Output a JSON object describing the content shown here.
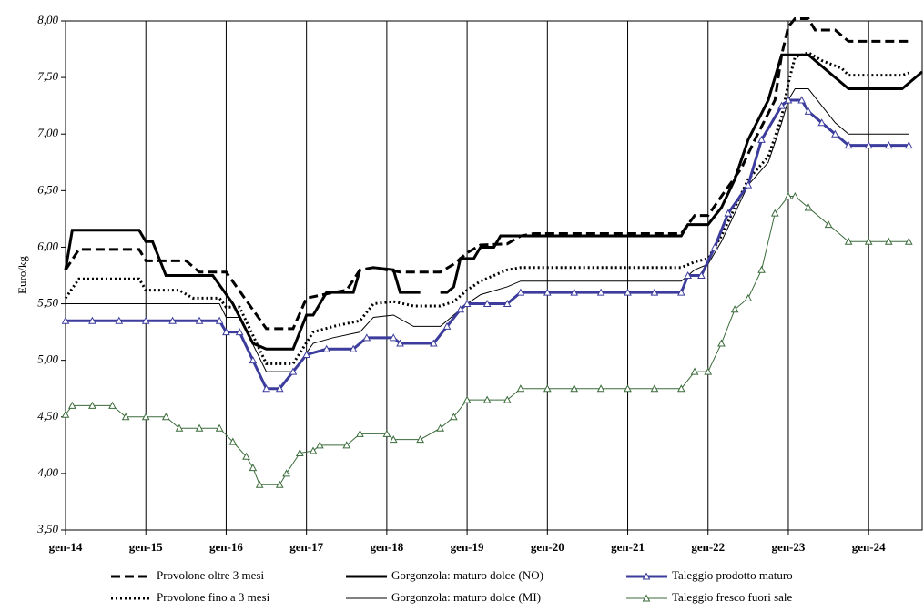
{
  "chart_data": {
    "type": "line",
    "y_label": "Euro/kg",
    "xlim": [
      0,
      128
    ],
    "xticks": [
      {
        "value": 0,
        "label": "gen-14"
      },
      {
        "value": 12,
        "label": "gen-15"
      },
      {
        "value": 24,
        "label": "gen-16"
      },
      {
        "value": 36,
        "label": "gen-17"
      },
      {
        "value": 48,
        "label": "gen-18"
      },
      {
        "value": 60,
        "label": "gen-19"
      },
      {
        "value": 72,
        "label": "gen-20"
      },
      {
        "value": 84,
        "label": "gen-21"
      },
      {
        "value": 96,
        "label": "gen-22"
      },
      {
        "value": 108,
        "label": "gen-23"
      },
      {
        "value": 120,
        "label": "gen-24"
      }
    ],
    "ylim": [
      3.5,
      8
    ],
    "yticks": [
      {
        "value": 3.5,
        "label": "3,50"
      },
      {
        "value": 4,
        "label": "4,00"
      },
      {
        "value": 4.5,
        "label": "4,50"
      },
      {
        "value": 5,
        "label": "5,00"
      },
      {
        "value": 5.5,
        "label": "5,50"
      },
      {
        "value": 6,
        "label": "6,00"
      },
      {
        "value": 6.5,
        "label": "6,50"
      },
      {
        "value": 7,
        "label": "7,00"
      },
      {
        "value": 7.5,
        "label": "7,50"
      },
      {
        "value": 8,
        "label": "8,00"
      }
    ],
    "grid": "vertical",
    "series": [
      {
        "name": "Provolone oltre 3 mesi",
        "color": "#000000",
        "line_style": "dashed",
        "line_width": 3,
        "marker": "none",
        "x": [
          0,
          2,
          11,
          12,
          18,
          20,
          24,
          30,
          34,
          36,
          40,
          42,
          44,
          46,
          50,
          56,
          58,
          60,
          62,
          66,
          68,
          70,
          92,
          94,
          96,
          98,
          101,
          103,
          106,
          107,
          108,
          109,
          111,
          112,
          115,
          117,
          126
        ],
        "values": [
          5.8,
          5.98,
          5.98,
          5.88,
          5.88,
          5.78,
          5.78,
          5.28,
          5.28,
          5.55,
          5.6,
          5.62,
          5.8,
          5.82,
          5.78,
          5.78,
          5.85,
          5.95,
          6.02,
          6.03,
          6.1,
          6.12,
          6.12,
          6.28,
          6.28,
          6.45,
          6.7,
          6.95,
          7.3,
          7.7,
          7.95,
          8.02,
          8.02,
          7.92,
          7.92,
          7.82,
          7.82
        ]
      },
      {
        "name": "Provolone fino a 3 mesi",
        "color": "#000000",
        "line_style": "dotted",
        "line_width": 3,
        "marker": "none",
        "x": [
          0,
          2,
          11,
          12,
          17,
          19,
          23,
          24,
          26,
          30,
          34,
          37,
          40,
          44,
          46,
          49,
          52,
          56,
          58,
          60,
          62,
          64,
          66,
          68,
          92,
          94,
          96,
          98,
          100,
          102,
          105,
          107,
          108,
          109,
          111,
          113,
          116,
          117,
          125,
          126
        ],
        "values": [
          5.55,
          5.72,
          5.72,
          5.62,
          5.62,
          5.55,
          5.55,
          5.47,
          5.47,
          4.97,
          4.97,
          5.25,
          5.3,
          5.35,
          5.5,
          5.52,
          5.48,
          5.48,
          5.52,
          5.62,
          5.7,
          5.75,
          5.8,
          5.82,
          5.82,
          5.87,
          5.9,
          6.1,
          6.35,
          6.6,
          6.8,
          7.15,
          7.45,
          7.68,
          7.72,
          7.65,
          7.58,
          7.52,
          7.52,
          7.54
        ]
      },
      {
        "name": "Gorgonzola: maturo dolce (NO)",
        "color": "#000000",
        "line_style": "solid",
        "line_width": 3,
        "marker": "none",
        "x": [
          0,
          1,
          11,
          12,
          13,
          15,
          22,
          25,
          28,
          30,
          34,
          36,
          37,
          39,
          43,
          44,
          45,
          46,
          49,
          50,
          53,
          55,
          56,
          57,
          58,
          59,
          61,
          62,
          64,
          65,
          92,
          93,
          96,
          98,
          100,
          102,
          105,
          107,
          111,
          113,
          115,
          117,
          125,
          128
        ],
        "values": [
          5.8,
          6.15,
          6.15,
          6.05,
          6.05,
          5.75,
          5.75,
          5.5,
          5.15,
          5.1,
          5.1,
          5.4,
          5.4,
          5.6,
          5.6,
          5.8,
          null,
          5.82,
          5.8,
          5.6,
          5.6,
          null,
          5.6,
          5.6,
          5.65,
          5.9,
          5.9,
          6.0,
          6.0,
          6.1,
          6.1,
          6.2,
          6.2,
          6.35,
          6.6,
          6.95,
          7.3,
          7.7,
          7.7,
          7.6,
          7.5,
          7.4,
          7.4,
          7.55
        ]
      },
      {
        "name": "Gorgonzola: maturo dolce (MI)",
        "color": "#000000",
        "line_style": "solid",
        "line_width": 1,
        "marker": "none",
        "x": [
          0,
          23,
          24,
          26,
          30,
          34,
          37,
          40,
          44,
          46,
          49,
          52,
          56,
          58,
          60,
          62,
          66,
          68,
          92,
          94,
          96,
          98,
          100,
          102,
          105,
          107,
          108,
          109,
          111,
          113,
          115,
          117,
          126
        ],
        "values": [
          5.5,
          5.5,
          5.38,
          5.38,
          4.9,
          4.9,
          5.15,
          5.2,
          5.25,
          5.38,
          5.4,
          5.3,
          5.3,
          5.4,
          5.5,
          5.58,
          5.65,
          5.7,
          5.7,
          5.8,
          5.85,
          6.05,
          6.3,
          6.55,
          6.75,
          7.1,
          7.3,
          7.4,
          7.4,
          7.25,
          7.1,
          7.0,
          7.0
        ]
      },
      {
        "name": "Taleggio prodotto maturo",
        "color": "#3c3c9c",
        "line_style": "solid",
        "line_width": 3,
        "marker": "triangle",
        "x": [
          0,
          4,
          8,
          12,
          16,
          20,
          23,
          24,
          26,
          28,
          30,
          32,
          34,
          36,
          39,
          43,
          45,
          49,
          50,
          55,
          57,
          59,
          60,
          63,
          66,
          68,
          72,
          76,
          80,
          84,
          88,
          92,
          93,
          95,
          97,
          99,
          102,
          104,
          107,
          108,
          110,
          111,
          113,
          115,
          117,
          120,
          123,
          126
        ],
        "values": [
          5.35,
          5.35,
          5.35,
          5.35,
          5.35,
          5.35,
          5.35,
          5.25,
          5.25,
          5.0,
          4.75,
          4.75,
          4.9,
          5.05,
          5.1,
          5.1,
          5.2,
          5.2,
          5.15,
          5.15,
          5.3,
          5.45,
          5.5,
          5.5,
          5.5,
          5.6,
          5.6,
          5.6,
          5.6,
          5.6,
          5.6,
          5.6,
          5.75,
          5.75,
          6.0,
          6.3,
          6.55,
          6.95,
          7.25,
          7.3,
          7.3,
          7.2,
          7.1,
          7.0,
          6.9,
          6.9,
          6.9,
          6.9
        ]
      },
      {
        "name": "Taleggio fresco fuori sale",
        "color": "#3a6b3a",
        "line_style": "solid",
        "line_width": 1,
        "marker": "triangle",
        "x": [
          0,
          1,
          4,
          7,
          9,
          12,
          15,
          17,
          20,
          23,
          25,
          27,
          28,
          29,
          32,
          33,
          35,
          37,
          38,
          42,
          44,
          48,
          49,
          53,
          56,
          58,
          60,
          63,
          66,
          68,
          72,
          76,
          80,
          84,
          88,
          92,
          94,
          96,
          98,
          100,
          102,
          104,
          106,
          108,
          109,
          111,
          114,
          117,
          120,
          123,
          126
        ],
        "values": [
          4.52,
          4.6,
          4.6,
          4.6,
          4.5,
          4.5,
          4.5,
          4.4,
          4.4,
          4.4,
          4.28,
          4.15,
          4.05,
          3.9,
          3.9,
          4.0,
          4.18,
          4.2,
          4.25,
          4.25,
          4.35,
          4.35,
          4.3,
          4.3,
          4.4,
          4.5,
          4.65,
          4.65,
          4.65,
          4.75,
          4.75,
          4.75,
          4.75,
          4.75,
          4.75,
          4.75,
          4.9,
          4.9,
          5.15,
          5.45,
          5.55,
          5.8,
          6.3,
          6.45,
          6.45,
          6.35,
          6.2,
          6.05,
          6.05,
          6.05,
          6.05
        ]
      }
    ]
  }
}
